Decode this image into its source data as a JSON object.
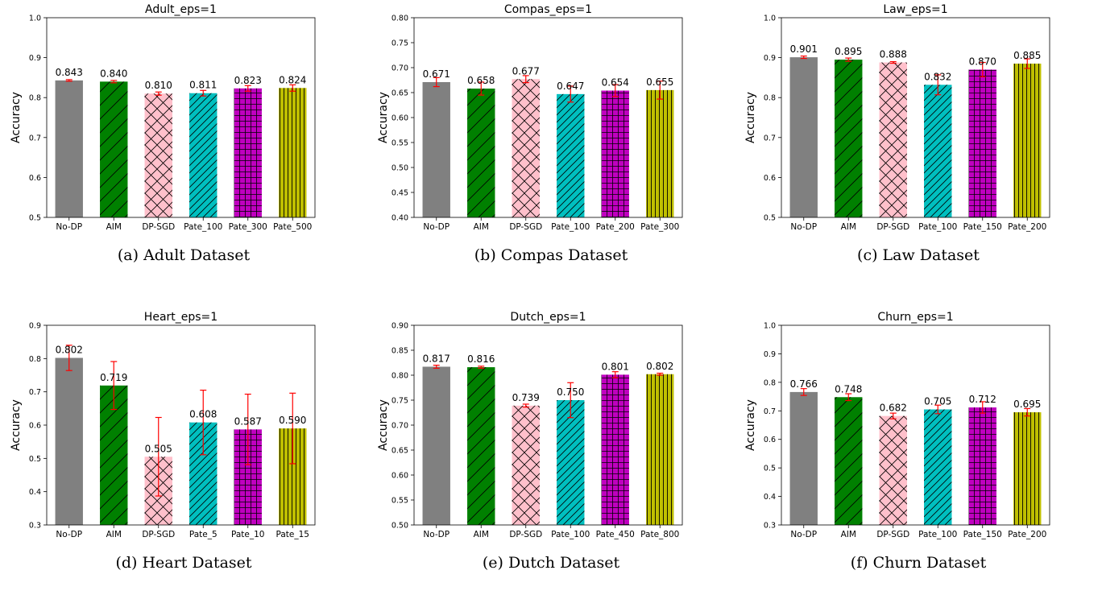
{
  "figure": {
    "colors": {
      "No-DP": "#808080",
      "AIM": "#008000",
      "DP-SGD": "#ffc0cb",
      "Pate": [
        "#00bfbf",
        "#bf00bf",
        "#bfbf00"
      ],
      "error_bar": "#ff0000"
    },
    "hatches": {
      "No-DP": "none",
      "AIM": "diagonal-forward-sparse",
      "DP-SGD": "crosshatch-x",
      "Pate_first": "diagonal-forward-dense",
      "Pate_second": "grid-plus",
      "Pate_third": "vertical-lines"
    }
  },
  "chart_data": [
    {
      "type": "bar",
      "title": "Adult_eps=1",
      "ylabel": "Accuracy",
      "caption": "(a)  Adult Dataset",
      "categories": [
        "No-DP",
        "AIM",
        "DP-SGD",
        "Pate_100",
        "Pate_300",
        "Pate_500"
      ],
      "values": [
        0.843,
        0.84,
        0.81,
        0.811,
        0.823,
        0.824
      ],
      "labels": [
        "0.843",
        "0.840",
        "0.810",
        "0.811",
        "0.823",
        "0.824"
      ],
      "errors": [
        0.002,
        0.003,
        0.004,
        0.007,
        0.007,
        0.008
      ],
      "ylim": [
        0.5,
        1.0
      ],
      "yticks": [
        "0.5",
        "0.6",
        "0.7",
        "0.8",
        "0.9",
        "1.0"
      ],
      "ytick_values": [
        0.5,
        0.6,
        0.7,
        0.8,
        0.9,
        1.0
      ]
    },
    {
      "type": "bar",
      "title": "Compas_eps=1",
      "ylabel": "Accuracy",
      "caption": "(b)  Compas Dataset",
      "categories": [
        "No-DP",
        "AIM",
        "DP-SGD",
        "Pate_100",
        "Pate_200",
        "Pate_300"
      ],
      "values": [
        0.671,
        0.658,
        0.677,
        0.647,
        0.654,
        0.655
      ],
      "labels": [
        "0.671",
        "0.658",
        "0.677",
        "0.647",
        "0.654",
        "0.655"
      ],
      "errors": [
        0.009,
        0.013,
        0.007,
        0.016,
        0.012,
        0.018
      ],
      "ylim": [
        0.4,
        0.8
      ],
      "yticks": [
        "0.40",
        "0.45",
        "0.50",
        "0.55",
        "0.60",
        "0.65",
        "0.70",
        "0.75",
        "0.80"
      ],
      "ytick_values": [
        0.4,
        0.45,
        0.5,
        0.55,
        0.6,
        0.65,
        0.7,
        0.75,
        0.8
      ]
    },
    {
      "type": "bar",
      "title": "Law_eps=1",
      "ylabel": "Accuracy",
      "caption": "(c)  Law Dataset",
      "categories": [
        "No-DP",
        "AIM",
        "DP-SGD",
        "Pate_100",
        "Pate_150",
        "Pate_200"
      ],
      "values": [
        0.901,
        0.895,
        0.888,
        0.832,
        0.87,
        0.885
      ],
      "labels": [
        "0.901",
        "0.895",
        "0.888",
        "0.832",
        "0.870",
        "0.885"
      ],
      "errors": [
        0.003,
        0.004,
        0.002,
        0.025,
        0.018,
        0.012
      ],
      "ylim": [
        0.5,
        1.0
      ],
      "yticks": [
        "0.5",
        "0.6",
        "0.7",
        "0.8",
        "0.9",
        "1.0"
      ],
      "ytick_values": [
        0.5,
        0.6,
        0.7,
        0.8,
        0.9,
        1.0
      ]
    },
    {
      "type": "bar",
      "title": "Heart_eps=1",
      "ylabel": "Accuracy",
      "caption": "(d)  Heart Dataset",
      "categories": [
        "No-DP",
        "AIM",
        "DP-SGD",
        "Pate_5",
        "Pate_10",
        "Pate_15"
      ],
      "values": [
        0.802,
        0.719,
        0.505,
        0.608,
        0.587,
        0.59
      ],
      "labels": [
        "0.802",
        "0.719",
        "0.505",
        "0.608",
        "0.587",
        "0.590"
      ],
      "errors": [
        0.038,
        0.072,
        0.118,
        0.097,
        0.106,
        0.106
      ],
      "ylim": [
        0.3,
        0.9
      ],
      "yticks": [
        "0.3",
        "0.4",
        "0.5",
        "0.6",
        "0.7",
        "0.8",
        "0.9"
      ],
      "ytick_values": [
        0.3,
        0.4,
        0.5,
        0.6,
        0.7,
        0.8,
        0.9
      ]
    },
    {
      "type": "bar",
      "title": "Dutch_eps=1",
      "ylabel": "Accuracy",
      "caption": "(e)  Dutch Dataset",
      "categories": [
        "No-DP",
        "AIM",
        "DP-SGD",
        "Pate_100",
        "Pate_450",
        "Pate_800"
      ],
      "values": [
        0.817,
        0.816,
        0.739,
        0.75,
        0.801,
        0.802
      ],
      "labels": [
        "0.817",
        "0.816",
        "0.739",
        "0.750",
        "0.801",
        "0.802"
      ],
      "errors": [
        0.003,
        0.002,
        0.003,
        0.035,
        0.006,
        0.002
      ],
      "ylim": [
        0.5,
        0.9
      ],
      "yticks": [
        "0.50",
        "0.55",
        "0.60",
        "0.65",
        "0.70",
        "0.75",
        "0.80",
        "0.85",
        "0.90"
      ],
      "ytick_values": [
        0.5,
        0.55,
        0.6,
        0.65,
        0.7,
        0.75,
        0.8,
        0.85,
        0.9
      ]
    },
    {
      "type": "bar",
      "title": "Churn_eps=1",
      "ylabel": "Accuracy",
      "caption": "(f)  Churn Dataset",
      "categories": [
        "No-DP",
        "AIM",
        "DP-SGD",
        "Pate_100",
        "Pate_150",
        "Pate_200"
      ],
      "values": [
        0.766,
        0.748,
        0.682,
        0.705,
        0.712,
        0.695
      ],
      "labels": [
        "0.766",
        "0.748",
        "0.682",
        "0.705",
        "0.712",
        "0.695"
      ],
      "errors": [
        0.012,
        0.012,
        0.01,
        0.015,
        0.02,
        0.013
      ],
      "ylim": [
        0.3,
        1.0
      ],
      "yticks": [
        "0.3",
        "0.4",
        "0.5",
        "0.6",
        "0.7",
        "0.8",
        "0.9",
        "1.0"
      ],
      "ytick_values": [
        0.3,
        0.4,
        0.5,
        0.6,
        0.7,
        0.8,
        0.9,
        1.0
      ]
    }
  ]
}
